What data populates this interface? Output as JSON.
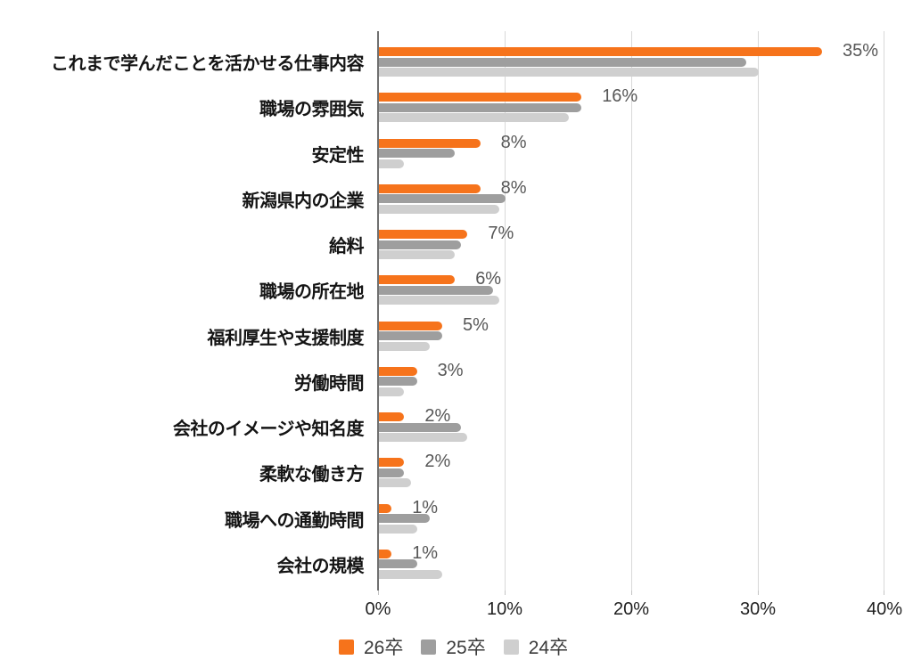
{
  "chart_data": {
    "type": "bar",
    "orientation": "horizontal",
    "title": "",
    "xlabel": "",
    "ylabel": "",
    "categories": [
      "これまで学んだことを活かせる仕事内容",
      "職場の雰囲気",
      "安定性",
      "新潟県内の企業",
      "給料",
      "職場の所在地",
      "福利厚生や支援制度",
      "労働時間",
      "会社のイメージや知名度",
      "柔軟な働き方",
      "職場への通勤時間",
      "会社の規模"
    ],
    "series": [
      {
        "name": "26卒",
        "color": "#f6731b",
        "values": [
          35,
          16,
          8,
          8,
          7,
          6,
          5,
          3,
          2,
          2,
          1,
          1
        ]
      },
      {
        "name": "25卒",
        "color": "#9e9e9e",
        "values": [
          29,
          16,
          6,
          10,
          6.5,
          9,
          5,
          3,
          6.5,
          2,
          4,
          3
        ]
      },
      {
        "name": "24卒",
        "color": "#cfcfcf",
        "values": [
          30,
          15,
          2,
          9.5,
          6,
          9.5,
          4,
          2,
          7,
          2.5,
          3,
          5
        ]
      }
    ],
    "data_labels": [
      "35%",
      "16%",
      "8%",
      "8%",
      "7%",
      "6%",
      "5%",
      "3%",
      "2%",
      "2%",
      "1%",
      "1%"
    ],
    "data_label_series": "26卒",
    "xlim": [
      0,
      40
    ],
    "x_ticks": [
      "0%",
      "10%",
      "20%",
      "30%",
      "40%"
    ],
    "x_tick_values": [
      0,
      10,
      20,
      30,
      40
    ],
    "grid": true,
    "legend_position": "bottom"
  },
  "colors": {
    "background": "#ffffff",
    "gridline": "#d8d8d8",
    "axis_line": "#707070",
    "value_label": "#575757",
    "axis_label": "#1f1f1f",
    "category_label": "#141414",
    "legend_label": "#3a3a3a"
  }
}
